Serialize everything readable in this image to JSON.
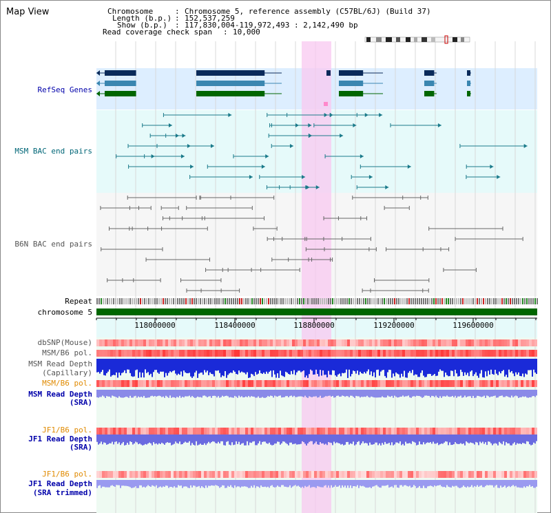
{
  "view_title": "Map View",
  "header": {
    "chromosome_label": "Chromosome",
    "chromosome_value": "Chromosome 5, reference assembly (C57BL/6J) (Build 37)",
    "length_label": "Length (b.p.)",
    "length_value": "152,537,259",
    "show_label": "Show (b.p.)",
    "show_value": "117,830,004-119,972,493 : 2,142,490 bp",
    "coverage_label": "Read coverage check span",
    "coverage_value": "10,000"
  },
  "tracks": {
    "refseq": "RefSeq Genes",
    "msm_bac": "MSM BAC end pairs",
    "b6n_bac": "B6N BAC end pairs",
    "repeat": "Repeat",
    "chromosome": "chromosome 5",
    "dbsnp": "dbSNP(Mouse)",
    "msm_b6_pol_1": "MSM/B6 pol.",
    "msm_read_depth_cap_1": "MSM Read Depth",
    "msm_read_depth_cap_2": "(Capillary)",
    "msm_b6_pol_2": "MSM/B6 pol.",
    "msm_read_depth_sra_1": "MSM Read Depth",
    "msm_read_depth_sra_2": "(SRA)",
    "jf1_b6_pol_1": "JF1/B6 pol.",
    "jf1_read_depth_sra_1": "JF1 Read Depth",
    "jf1_read_depth_sra_2": "(SRA)",
    "jf1_b6_pol_2": "JF1/B6 pol.",
    "jf1_read_depth_trim_1": "JF1 Read Depth",
    "jf1_read_depth_trim_2": "(SRA trimmed)"
  },
  "axis": {
    "ticks": [
      "118000000",
      "118400000",
      "118800000",
      "119200000",
      "119600000"
    ]
  },
  "colors": {
    "highlight": "#f8c8f0",
    "refseq_bg": "#ddeeff",
    "msm_bg": "#e6fafa",
    "b6n_bg": "#f6f6f6",
    "chromosome": "#006600",
    "gene_dark": "#0a2a5a",
    "gene_mid": "#3a86b0",
    "gene_green": "#006600",
    "msm_pair": "#1a7a8a",
    "b6n_pair": "#666666"
  }
}
